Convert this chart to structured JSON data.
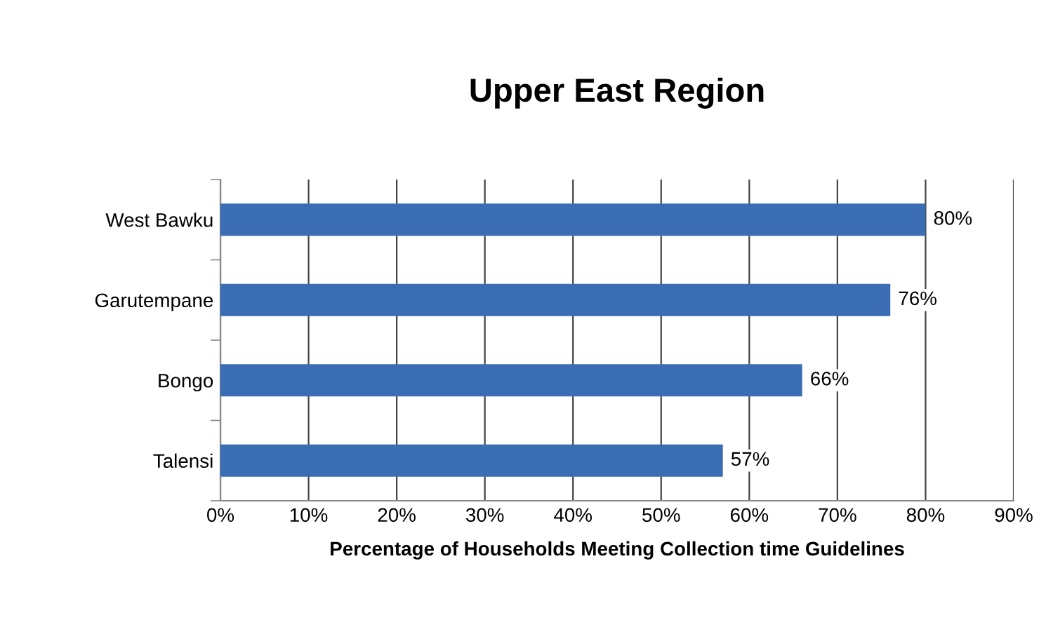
{
  "chart_data": {
    "type": "bar",
    "orientation": "horizontal",
    "title": "Upper East Region",
    "xlabel": "Percentage of Households Meeting Collection time Guidelines",
    "categories": [
      "West Bawku",
      "Garutempane",
      "Bongo",
      "Talensi"
    ],
    "values": [
      80,
      76,
      66,
      57
    ],
    "value_labels": [
      "80%",
      "76%",
      "66%",
      "57%"
    ],
    "color": "#3a6db4",
    "xlim": [
      0,
      90
    ],
    "xticks": [
      {
        "value": 0,
        "label": "0%"
      },
      {
        "value": 10,
        "label": "10%"
      },
      {
        "value": 20,
        "label": "20%"
      },
      {
        "value": 30,
        "label": "30%"
      },
      {
        "value": 40,
        "label": "40%"
      },
      {
        "value": 50,
        "label": "50%"
      },
      {
        "value": 60,
        "label": "60%"
      },
      {
        "value": 70,
        "label": "70%"
      },
      {
        "value": 80,
        "label": "80%"
      },
      {
        "value": 90,
        "label": "90%"
      }
    ],
    "grid": "x"
  }
}
